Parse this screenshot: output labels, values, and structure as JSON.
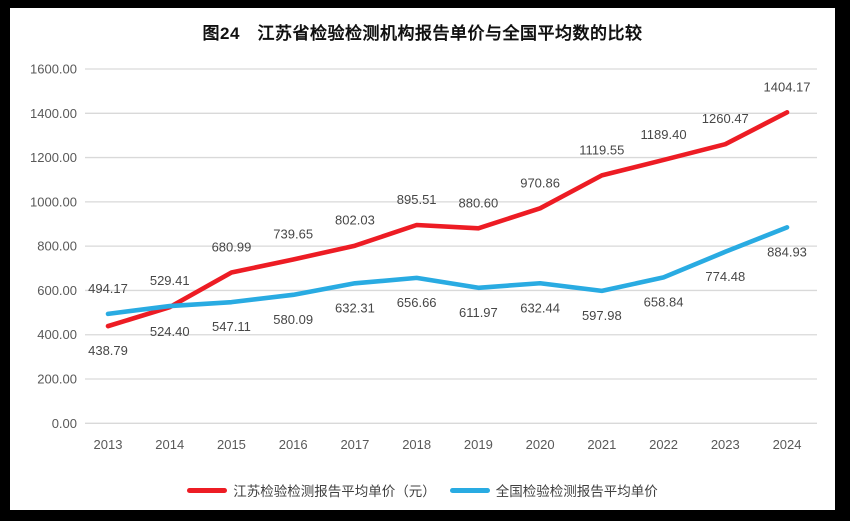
{
  "frame": {
    "background_color": "#000000",
    "surface_color": "#ffffff"
  },
  "chart_data": {
    "type": "line",
    "title": "图24　江苏省检验检测机构报告单价与全国平均数的比较",
    "categories": [
      "2013",
      "2014",
      "2015",
      "2016",
      "2017",
      "2018",
      "2019",
      "2020",
      "2021",
      "2022",
      "2023",
      "2024"
    ],
    "series": [
      {
        "name": "江苏检验检测报告平均单价（元）",
        "color": "#ed1c24",
        "values": [
          438.79,
          524.4,
          680.99,
          739.65,
          802.03,
          895.51,
          880.6,
          970.86,
          1119.55,
          1189.4,
          1260.47,
          1404.17
        ],
        "value_labels": [
          "438.79",
          "524.40",
          "680.99",
          "739.65",
          "802.03",
          "895.51",
          "880.60",
          "970.86",
          "1119.55",
          "1189.40",
          "1260.47",
          "1404.17"
        ],
        "label_positions": [
          "below",
          "below",
          "above",
          "above",
          "above",
          "above",
          "above",
          "above",
          "above",
          "above",
          "above",
          "above"
        ]
      },
      {
        "name": "全国检验检测报告平均单价",
        "color": "#29abe2",
        "values": [
          494.17,
          529.41,
          547.11,
          580.09,
          632.31,
          656.66,
          611.97,
          632.44,
          597.98,
          658.84,
          774.48,
          884.93
        ],
        "value_labels": [
          "494.17",
          "529.41",
          "547.11",
          "580.09",
          "632.31",
          "656.66",
          "611.97",
          "632.44",
          "597.98",
          "658.84",
          "774.48",
          "884.93"
        ],
        "label_positions": [
          "above",
          "above",
          "below",
          "below",
          "below",
          "below",
          "below",
          "below",
          "below",
          "below",
          "below",
          "below"
        ]
      }
    ],
    "y_axis": {
      "min": 0,
      "max": 1600,
      "step": 200,
      "tick_labels": [
        "0.00",
        "200.00",
        "400.00",
        "600.00",
        "800.00",
        "1000.00",
        "1200.00",
        "1400.00",
        "1600.00"
      ]
    },
    "grid": true,
    "gridline_color": "#d9d9d9",
    "axis_text_color": "#595959",
    "data_label_color": "#474747",
    "legend_position": "bottom"
  }
}
